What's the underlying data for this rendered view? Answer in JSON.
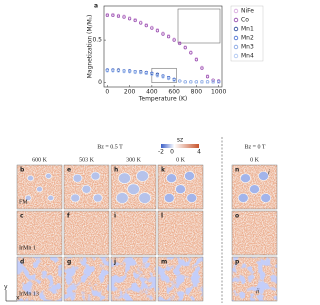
{
  "chart_data": {
    "type": "scatter",
    "panel_label": "a",
    "x_label": "Temperature (K)",
    "y_label": "Magnetization (M/Mₛ)",
    "x": [
      0,
      50,
      100,
      150,
      200,
      250,
      300,
      350,
      400,
      450,
      500,
      550,
      600,
      650,
      700,
      750,
      800,
      850,
      900,
      950,
      1000
    ],
    "series": [
      {
        "name": "NiFe",
        "color": "#d6a3dc",
        "values": [
          0.8,
          0.8,
          0.79,
          0.78,
          0.76,
          0.74,
          0.71,
          0.68,
          0.65,
          0.62,
          0.58,
          0.55,
          0.51,
          0.47,
          0.42,
          0.36,
          0.28,
          0.18,
          0.08,
          0.03,
          0.02
        ]
      },
      {
        "name": "Co",
        "color": "#8e3fa8",
        "values": [
          0.79,
          0.79,
          0.78,
          0.77,
          0.75,
          0.73,
          0.7,
          0.67,
          0.64,
          0.61,
          0.57,
          0.54,
          0.5,
          0.46,
          0.41,
          0.35,
          0.27,
          0.17,
          0.07,
          0.03,
          0.02
        ]
      },
      {
        "name": "Mn1",
        "color": "#1f3f95",
        "values": [
          0.15,
          0.15,
          0.15,
          0.14,
          0.14,
          0.13,
          0.13,
          0.12,
          0.11,
          0.1,
          0.08,
          0.06,
          0.04,
          0.02,
          0.01,
          0.01,
          0.01,
          0.01,
          0.01,
          0.01,
          0.01
        ]
      },
      {
        "name": "Mn2",
        "color": "#4169d0",
        "values": [
          0.15,
          0.15,
          0.14,
          0.14,
          0.14,
          0.13,
          0.12,
          0.12,
          0.11,
          0.09,
          0.08,
          0.06,
          0.04,
          0.02,
          0.01,
          0.01,
          0.01,
          0.01,
          0.01,
          0.01,
          0.01
        ]
      },
      {
        "name": "Mn3",
        "color": "#7d9fe2",
        "values": [
          0.14,
          0.14,
          0.14,
          0.14,
          0.13,
          0.13,
          0.12,
          0.11,
          0.1,
          0.09,
          0.07,
          0.05,
          0.03,
          0.02,
          0.01,
          0.01,
          0.01,
          0.01,
          0.01,
          0.01,
          0.01
        ]
      },
      {
        "name": "Mn4",
        "color": "#a9c3f0",
        "values": [
          0.14,
          0.14,
          0.14,
          0.13,
          0.13,
          0.12,
          0.12,
          0.11,
          0.1,
          0.08,
          0.07,
          0.05,
          0.03,
          0.02,
          0.01,
          0.01,
          0.01,
          0.01,
          0.01,
          0.01,
          0.01
        ]
      }
    ],
    "xlim": [
      -30,
      1030
    ],
    "ylim": [
      -0.05,
      0.9
    ],
    "xticks": [
      0,
      200,
      400,
      600,
      800,
      1000
    ],
    "yticks": [
      0,
      0.5
    ]
  },
  "figure": {
    "field_headers": [
      "Bz = 0.5 T",
      "Bz = 0 T"
    ],
    "temperatures": [
      "600 K",
      "503 K",
      "300 K",
      "0 K",
      "0 K"
    ],
    "colorbar": {
      "label": "sz",
      "ticks": [
        "-2",
        "0",
        "4"
      ]
    },
    "rows": [
      "FM",
      "IrMn 1",
      "IrMn 13"
    ],
    "panels": [
      [
        "b",
        "e",
        "h",
        "k",
        "n"
      ],
      [
        "c",
        "f",
        "i",
        "l",
        "o"
      ],
      [
        "d",
        "g",
        "j",
        "m",
        "p"
      ]
    ],
    "markers": [
      "i",
      "ii"
    ],
    "axes": [
      "y",
      "x"
    ]
  }
}
